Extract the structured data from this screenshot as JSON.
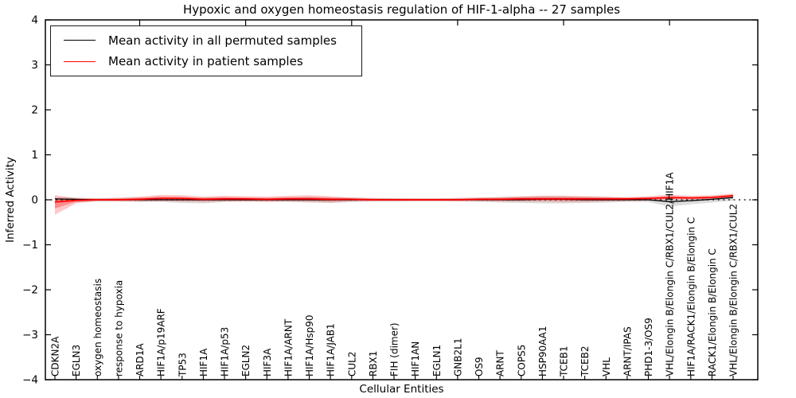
{
  "colors": {
    "permuted_line": "#000000",
    "patient_line": "#ff0000",
    "permuted_band": "#b0b0b0",
    "patient_band": "#ff0000",
    "zero_line": "#1a1a1a",
    "frame": "#000000"
  },
  "chart_data": {
    "type": "line",
    "title": "Hypoxic and oxygen homeostasis regulation of HIF-1-alpha -- 27 samples",
    "xlabel": "Cellular Entities",
    "ylabel": "Inferred Activity",
    "ylim": [
      -4,
      4
    ],
    "yticks": [
      -4,
      -3,
      -2,
      -1,
      0,
      1,
      2,
      3,
      4
    ],
    "grid": false,
    "legend_position": "upper-left",
    "legend": [
      {
        "label": "Mean activity in all permuted samples",
        "color": "#000000"
      },
      {
        "label": "Mean activity in patient samples",
        "color": "#ff0000"
      }
    ],
    "x_categories": [
      "CDKN2A",
      "EGLN3",
      "oxygen homeostasis",
      "response to hypoxia",
      "ARD1A",
      "HIF1A/p19ARF",
      "TP53",
      "HIF1A",
      "HIF1A/p53",
      "EGLN2",
      "HIF3A",
      "HIF1A/ARNT",
      "HIF1A/Hsp90",
      "HIF1A/JAB1",
      "CUL2",
      "RBX1",
      "FIH (dimer)",
      "HIF1AN",
      "EGLN1",
      "GNB2L1",
      "OS9",
      "ARNT",
      "COPS5",
      "HSP90AA1",
      "TCEB1",
      "TCEB2",
      "VHL",
      "ARNT/IPAS",
      "PHD1-3/OS9",
      "VHL/Elongin B/Elongin C/RBX1/CUL2/HIF1A",
      "HIF1A/RACK1/Elongin B/Elongin C",
      "RACK1/Elongin B/Elongin C",
      "VHL/Elongin B/Elongin C/RBX1/CUL2"
    ],
    "series": [
      {
        "name": "Mean activity in all permuted samples",
        "color": "#000000",
        "values": [
          0.02,
          0.01,
          0,
          0,
          0,
          0,
          0,
          0,
          0,
          0,
          0,
          0,
          0,
          0,
          0,
          0,
          0,
          0,
          0,
          0,
          0,
          0,
          0,
          0.01,
          0.01,
          0,
          0,
          0,
          0,
          -0.04,
          -0.02,
          0.01,
          0.05
        ]
      },
      {
        "name": "Mean activity in patient samples",
        "color": "#ff0000",
        "values": [
          -0.05,
          -0.01,
          0,
          0,
          0.01,
          0.03,
          0.03,
          0.01,
          0.02,
          0.02,
          0.01,
          0.02,
          0.02,
          0.01,
          0.01,
          0,
          0,
          0,
          0,
          0,
          0.01,
          0.01,
          0.02,
          0.02,
          0.02,
          0.02,
          0.02,
          0.02,
          0.03,
          0.05,
          0.04,
          0.05,
          0.09
        ]
      }
    ],
    "bands": [
      {
        "name": "permuted-std-band",
        "color": "#b0b0b0",
        "opacity": 0.45,
        "upper": [
          0.06,
          0.05,
          0.04,
          0.04,
          0.05,
          0.05,
          0.04,
          0.05,
          0.05,
          0.04,
          0.04,
          0.05,
          0.06,
          0.05,
          0.05,
          0.04,
          0.04,
          0.03,
          0.03,
          0.04,
          0.05,
          0.06,
          0.07,
          0.08,
          0.08,
          0.07,
          0.06,
          0.05,
          0.05,
          0.04,
          0.05,
          0.05,
          0.08
        ],
        "lower": [
          -0.04,
          -0.05,
          -0.04,
          -0.04,
          -0.05,
          -0.05,
          -0.07,
          -0.08,
          -0.05,
          -0.04,
          -0.04,
          -0.05,
          -0.06,
          -0.07,
          -0.05,
          -0.04,
          -0.04,
          -0.03,
          -0.03,
          -0.04,
          -0.05,
          -0.06,
          -0.07,
          -0.08,
          -0.08,
          -0.07,
          -0.06,
          -0.05,
          -0.05,
          -0.15,
          -0.1,
          -0.06,
          -0.02
        ]
      },
      {
        "name": "patient-std-band",
        "color": "#ff0000",
        "opacity": 0.22,
        "upper": [
          0.1,
          0.04,
          0.03,
          0.05,
          0.07,
          0.11,
          0.1,
          0.07,
          0.09,
          0.08,
          0.07,
          0.09,
          0.1,
          0.08,
          0.05,
          0.04,
          0.03,
          0.03,
          0.03,
          0.04,
          0.05,
          0.06,
          0.08,
          0.09,
          0.09,
          0.08,
          0.07,
          0.06,
          0.08,
          0.11,
          0.09,
          0.1,
          0.14
        ],
        "lower": [
          -0.33,
          -0.08,
          -0.03,
          -0.03,
          -0.04,
          -0.03,
          -0.04,
          -0.05,
          -0.04,
          -0.04,
          -0.05,
          -0.04,
          -0.05,
          -0.06,
          -0.04,
          -0.03,
          -0.03,
          -0.03,
          -0.03,
          -0.03,
          -0.03,
          -0.04,
          -0.04,
          -0.04,
          -0.05,
          -0.05,
          -0.04,
          -0.03,
          -0.02,
          0.0,
          0.0,
          0.01,
          0.04
        ]
      }
    ],
    "zero_line": {
      "y": 0,
      "style": "dotted",
      "color": "#1a1a1a"
    },
    "top_tick_indices": [
      4,
      9,
      14,
      19,
      24,
      29
    ]
  }
}
